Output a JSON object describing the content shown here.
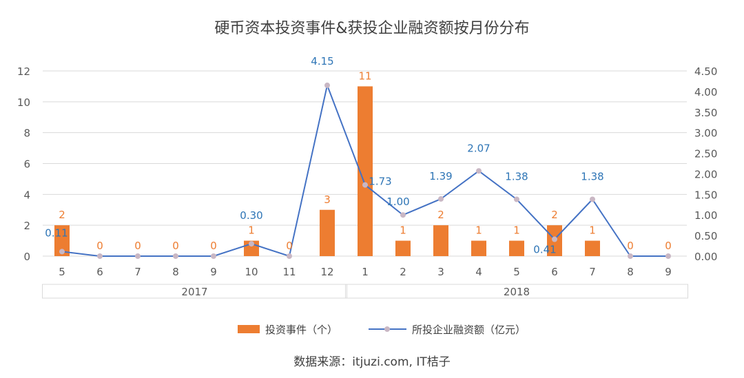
{
  "chart_data": {
    "type": "bar+line",
    "title": "硬币资本投资事件&获投企业融资额按月份分布",
    "categories": [
      "5",
      "6",
      "7",
      "8",
      "9",
      "10",
      "11",
      "12",
      "1",
      "2",
      "3",
      "4",
      "5",
      "6",
      "7",
      "8",
      "9"
    ],
    "groups": [
      {
        "label": "2017",
        "count": 8
      },
      {
        "label": "2018",
        "count": 9
      }
    ],
    "series": [
      {
        "name": "投资事件（个）",
        "type": "bar",
        "axis": "left",
        "color": "#ED7D31",
        "values": [
          2,
          0,
          0,
          0,
          0,
          1,
          0,
          3,
          11,
          1,
          2,
          1,
          1,
          2,
          1,
          0,
          0
        ]
      },
      {
        "name": "所投企业融资额（亿元）",
        "type": "line",
        "axis": "right",
        "color": "#4472C4",
        "marker_color": "#C9B7C4",
        "values": [
          0.11,
          0,
          0,
          0,
          0,
          0.3,
          0,
          4.15,
          1.73,
          1.0,
          1.39,
          2.07,
          1.38,
          0.41,
          1.38,
          0,
          0
        ]
      }
    ],
    "left_axis": {
      "ylim": [
        0,
        12
      ],
      "ticks": [
        "0",
        "2",
        "4",
        "6",
        "8",
        "10",
        "12"
      ]
    },
    "right_axis": {
      "ylim": [
        0,
        4.5
      ],
      "ticks": [
        "0.00",
        "0.50",
        "1.00",
        "1.50",
        "2.00",
        "2.50",
        "3.00",
        "3.50",
        "4.00",
        "4.50"
      ]
    },
    "grid": true,
    "legend_position": "bottom",
    "label_color_bar": "#ED7D31",
    "label_color_line": "#2E75B6"
  },
  "source": "数据来源：itjuzi.com, IT桔子"
}
